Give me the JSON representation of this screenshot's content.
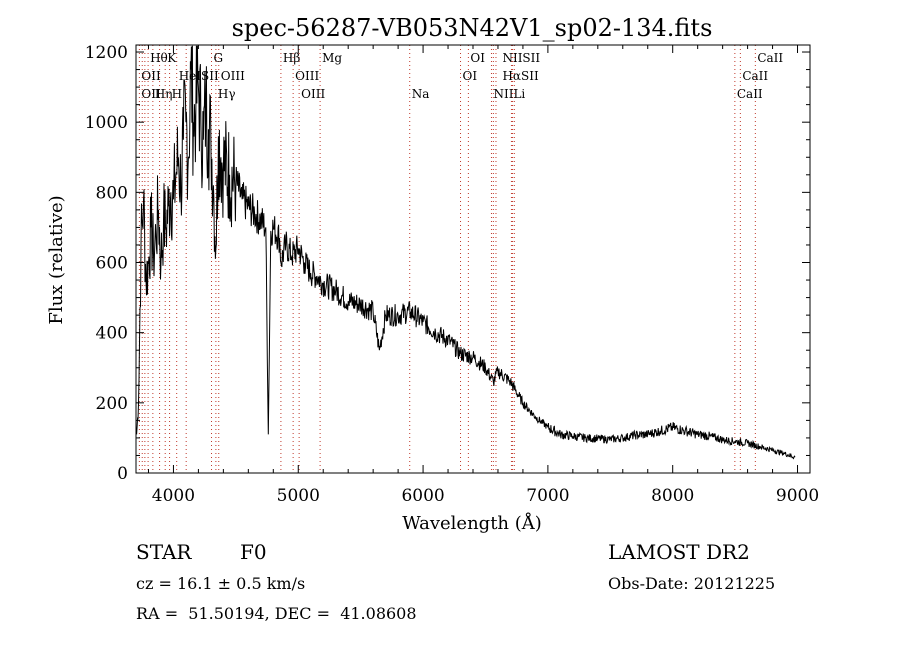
{
  "chart_data": {
    "type": "line",
    "title": "spec-56287-VB053N42V1_sp02-134.fits",
    "xlabel": "Wavelength (Å)",
    "ylabel": "Flux (relative)",
    "xlim": [
      3700,
      9100
    ],
    "ylim": [
      0,
      1220
    ],
    "x_ticks": [
      4000,
      5000,
      6000,
      7000,
      8000,
      9000
    ],
    "y_ticks": [
      0,
      200,
      400,
      600,
      800,
      1000,
      1200
    ],
    "grid": false,
    "line_color": "#000000",
    "marker_color": "#c0392b",
    "series": [
      {
        "x": [
          3705,
          3720,
          3740,
          3760,
          3780,
          3800,
          3820,
          3840,
          3860,
          3880,
          3900,
          3920,
          3940,
          3960,
          3980,
          4000,
          4020,
          4040,
          4060,
          4080,
          4100,
          4120,
          4140,
          4160,
          4180,
          4200,
          4220,
          4240,
          4260,
          4280,
          4300,
          4320,
          4340,
          4360,
          4380,
          4400,
          4450,
          4500,
          4550,
          4600,
          4650,
          4700,
          4740,
          4760,
          4780,
          4800,
          4850,
          4861,
          4900,
          4950,
          5000,
          5050,
          5100,
          5150,
          5200,
          5300,
          5400,
          5500,
          5600,
          5650,
          5700,
          5800,
          5900,
          6000,
          6100,
          6200,
          6300,
          6400,
          6500,
          6563,
          6600,
          6700,
          6800,
          6900,
          7000,
          7100,
          7200,
          7300,
          7400,
          7500,
          7600,
          7700,
          7800,
          7900,
          8000,
          8100,
          8200,
          8300,
          8400,
          8500,
          8600,
          8700,
          8800,
          8900,
          8980
        ],
        "y": [
          110,
          200,
          650,
          780,
          550,
          600,
          700,
          620,
          680,
          750,
          600,
          720,
          700,
          760,
          800,
          780,
          850,
          900,
          820,
          950,
          1000,
          900,
          1150,
          1000,
          1050,
          1100,
          1000,
          950,
          1050,
          980,
          950,
          820,
          640,
          960,
          900,
          880,
          850,
          830,
          780,
          760,
          740,
          720,
          700,
          110,
          690,
          700,
          670,
          600,
          650,
          620,
          640,
          600,
          570,
          560,
          540,
          520,
          490,
          480,
          460,
          350,
          450,
          450,
          460,
          430,
          400,
          380,
          340,
          330,
          300,
          260,
          290,
          260,
          200,
          160,
          130,
          110,
          105,
          100,
          98,
          96,
          100,
          108,
          110,
          120,
          130,
          120,
          110,
          105,
          95,
          90,
          85,
          75,
          65,
          55,
          45
        ]
      }
    ],
    "line_markers": [
      {
        "label": "Hθ",
        "x": 3797,
        "row": 0
      },
      {
        "label": "K",
        "x": 3934,
        "row": 0
      },
      {
        "label": "G",
        "x": 4305,
        "row": 0
      },
      {
        "label": "Hβ",
        "x": 4861,
        "row": 0
      },
      {
        "label": "Mg",
        "x": 5175,
        "row": 0
      },
      {
        "label": "OI",
        "x": 6363,
        "row": 0
      },
      {
        "label": "NIISII",
        "x": 6620,
        "row": 0
      },
      {
        "label": "CaII",
        "x": 8662,
        "row": 0
      },
      {
        "label": "OII",
        "x": 3727,
        "row": 1
      },
      {
        "label": "HeISII",
        "x": 4026,
        "row": 1
      },
      {
        "label": "OIII",
        "x": 4363,
        "row": 1
      },
      {
        "label": "OIII",
        "x": 4959,
        "row": 1
      },
      {
        "label": "OI",
        "x": 6300,
        "row": 1
      },
      {
        "label": "HαSII",
        "x": 6620,
        "row": 1
      },
      {
        "label": "CaII",
        "x": 8542,
        "row": 1
      },
      {
        "label": "OII",
        "x": 3727,
        "row": 2
      },
      {
        "label": "Hη",
        "x": 3835,
        "row": 2
      },
      {
        "label": "H",
        "x": 3969,
        "row": 2
      },
      {
        "label": "Hγ",
        "x": 4340,
        "row": 2
      },
      {
        "label": "OIII",
        "x": 5007,
        "row": 2
      },
      {
        "label": "Na",
        "x": 5893,
        "row": 2
      },
      {
        "label": "NII",
        "x": 6548,
        "row": 2
      },
      {
        "label": "Li",
        "x": 6708,
        "row": 2
      },
      {
        "label": "CaII",
        "x": 8498,
        "row": 2
      }
    ],
    "marker_lines_x": [
      3727,
      3750,
      3771,
      3797,
      3835,
      3889,
      3934,
      3969,
      4026,
      4102,
      4305,
      4340,
      4363,
      4861,
      4959,
      5007,
      5175,
      5893,
      6300,
      6363,
      6548,
      6563,
      6584,
      6717,
      6731,
      6708,
      8498,
      8542,
      8662
    ]
  },
  "info": {
    "object_type": "STAR",
    "subclass": "F0",
    "survey": "LAMOST DR2",
    "redshift": "cz = 16.1 ± 0.5 km/s",
    "obs_date": "Obs-Date: 20121225",
    "coords": "RA =  51.50194, DEC =  41.08608"
  }
}
